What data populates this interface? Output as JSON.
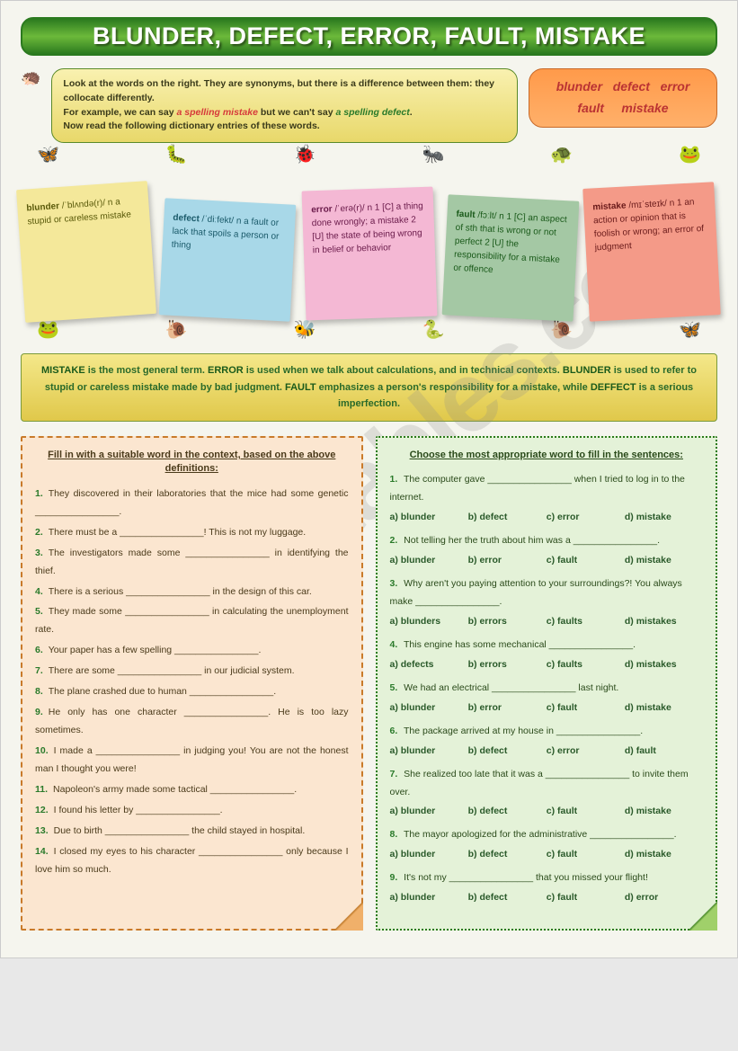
{
  "title": "BLUNDER, DEFECT, ERROR, FAULT, MISTAKE",
  "watermark": "ESLprintables.com",
  "intro": {
    "l1": "Look at the words on the right. They are synonyms, but there is a difference between them: they collocate differently.",
    "l2a": "For example, we can say ",
    "sp1": "a spelling mistake",
    "l2b": " but we can't say ",
    "sp2": "a spelling defect",
    "l2c": ".",
    "l3": "Now read the following dictionary entries of these words."
  },
  "pill": {
    "w1": "blunder",
    "w2": "defect",
    "w3": "error",
    "w4": "fault",
    "w5": "mistake"
  },
  "cards": {
    "blunder": {
      "head": "blunder",
      "body": "/ˈblʌndə(r)/ n a stupid or careless mistake"
    },
    "defect": {
      "head": "defect",
      "body": "/ˈdiːfekt/ n a fault or lack that spoils a person or thing"
    },
    "error": {
      "head": "error",
      "body": "/ˈerə(r)/ n 1 [C] a thing done wrongly; a mistake 2 [U] the state of being wrong in belief or behavior"
    },
    "fault": {
      "head": "fault",
      "body": "/fɔːlt/ n 1 [C] an aspect of sth that is wrong or not perfect 2 [U] the responsibility for a mistake or offence"
    },
    "mistake": {
      "head": "mistake",
      "body": "/mɪˈsteɪk/ n 1 an action or opinion that is foolish or wrong; an error of judgment"
    }
  },
  "explain": {
    "s1": "MISTAKE",
    "t1": " is the most general term. ",
    "s2": "ERROR",
    "t2": " is used when we talk about calculations, and in technical contexts. ",
    "s3": "BLUNDER",
    "t3": " is used to refer to stupid or careless mistake made by bad judgment. ",
    "s4": "FAULT",
    "t4": " emphasizes a person's responsibility for a mistake, while ",
    "s5": "DEFFECT",
    "t5": " is a serious imperfection."
  },
  "left": {
    "heading": "Fill in with a suitable word in the context, based on the above definitions:",
    "items": [
      "They discovered in their laboratories that the mice had some genetic ________________.",
      "There must be a ________________! This is not my luggage.",
      "The investigators made some ________________ in identifying the thief.",
      "There is a serious ________________ in the design of this car.",
      "They made some ________________ in calculating the unemployment rate.",
      "Your paper has a few spelling ________________.",
      "There are some ________________ in our judicial system.",
      "The plane crashed due to human ________________.",
      "He only has one character ________________. He is too lazy sometimes.",
      "I made a ________________ in judging you! You are not the honest man I thought you were!",
      "Napoleon's army made some tactical ________________.",
      "I found his letter by ________________.",
      "Due to birth ________________ the child stayed in hospital.",
      "I closed my eyes to his character ________________ only because I love him so much."
    ]
  },
  "right": {
    "heading": "Choose the most appropriate word to fill in the sentences:",
    "qs": [
      {
        "n": "1.",
        "t": "The computer gave ________________ when I tried to log in to the internet.",
        "o": [
          "a) blunder",
          "b) defect",
          "c) error",
          "d) mistake"
        ]
      },
      {
        "n": "2.",
        "t": "Not telling her the truth about him was a ________________.",
        "o": [
          "a) blunder",
          "b) error",
          "c) fault",
          "d) mistake"
        ]
      },
      {
        "n": "3.",
        "t": "Why aren't you paying attention to your surroundings?! You always make ________________.",
        "o": [
          "a) blunders",
          "b) errors",
          "c) faults",
          "d) mistakes"
        ]
      },
      {
        "n": "4.",
        "t": "This engine has some mechanical ________________.",
        "o": [
          "a) defects",
          "b) errors",
          "c) faults",
          "d) mistakes"
        ]
      },
      {
        "n": "5.",
        "t": "We had an electrical ________________ last night.",
        "o": [
          "a) blunder",
          "b) error",
          "c) fault",
          "d) mistake"
        ]
      },
      {
        "n": "6.",
        "t": "The package arrived at my house in ________________.",
        "o": [
          "a) blunder",
          "b) defect",
          "c) error",
          "d) fault"
        ]
      },
      {
        "n": "7.",
        "t": "She realized too late that it was a ________________ to invite them over.",
        "o": [
          "a) blunder",
          "b) defect",
          "c) fault",
          "d) mistake"
        ]
      },
      {
        "n": "8.",
        "t": "The mayor apologized for the administrative ________________.",
        "o": [
          "a) blunder",
          "b) defect",
          "c) fault",
          "d) mistake"
        ]
      },
      {
        "n": "9.",
        "t": "It's not my ________________ that you missed your flight!",
        "o": [
          "a) blunder",
          "b) defect",
          "c) fault",
          "d) error"
        ]
      }
    ]
  }
}
